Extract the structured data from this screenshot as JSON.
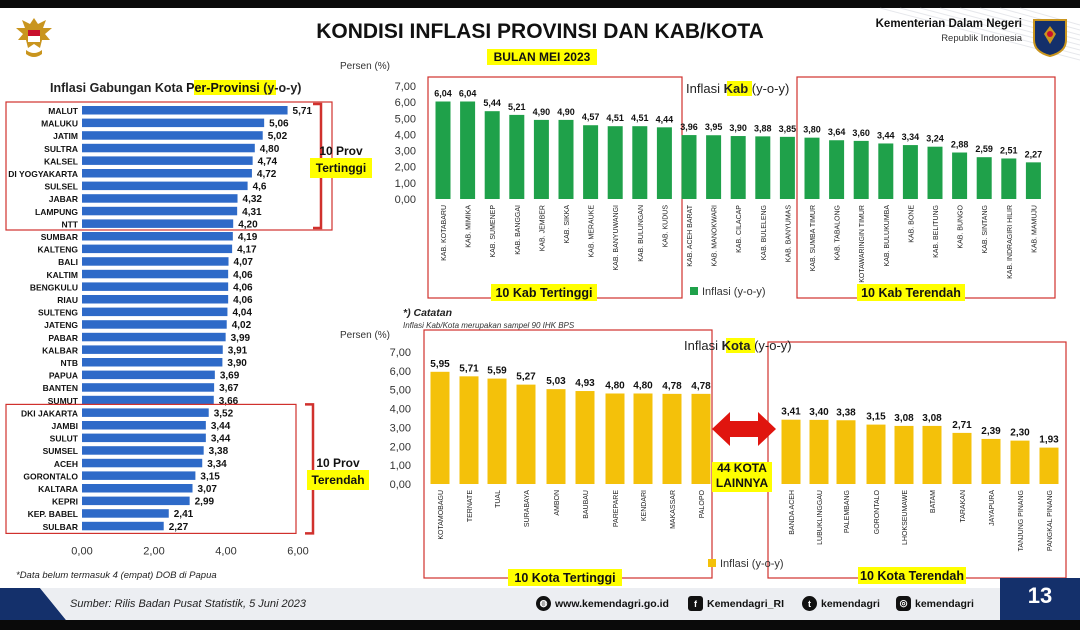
{
  "header": {
    "title": "KONDISI INFLASI PROVINSI DAN KAB/KOTA",
    "subtitle": "BULAN MEI 2023",
    "ministry": "Kementerian Dalam Negeri",
    "ministry_sub": "Republik Indonesia"
  },
  "footer": {
    "source": "Sumber: Rilis Badan Pusat Statistik,  5 Juni 2023",
    "website": "www.kemendagri.go.id",
    "facebook": "Kemendagri_RI",
    "twitter": "kemendagri",
    "instagram": "kemendagri",
    "page_number": "13"
  },
  "colors": {
    "navy": "#14306b",
    "blue_bar": "#2e6ac8",
    "green_bar": "#1fa14a",
    "yellow_bar": "#f4c10a",
    "highlight": "#ffff00",
    "frame_red": "#d0312d",
    "arrow_red": "#e0150f"
  },
  "chart_data": [
    {
      "type": "bar",
      "orientation": "horizontal",
      "title": "Inflasi Gabungan Kota Per-Provinsi (y-o-y)",
      "title_parts": [
        "Inflasi Gabungan Kota ",
        "Per-Provinsi",
        " (y-o-y)"
      ],
      "categories": [
        "MALUT",
        "MALUKU",
        "JATIM",
        "SULTRA",
        "KALSEL",
        "DI YOGYAKARTA",
        "SULSEL",
        "JABAR",
        "LAMPUNG",
        "NTT",
        "SUMBAR",
        "KALTENG",
        "BALI",
        "KALTIM",
        "BENGKULU",
        "RIAU",
        "SULTENG",
        "JATENG",
        "PABAR",
        "KALBAR",
        "NTB",
        "PAPUA",
        "BANTEN",
        "SUMUT",
        "DKI JAKARTA",
        "JAMBI",
        "SULUT",
        "SUMSEL",
        "ACEH",
        "GORONTALO",
        "KALTARA",
        "KEPRI",
        "KEP. BABEL",
        "SULBAR"
      ],
      "values": [
        5.71,
        5.06,
        5.02,
        4.8,
        4.74,
        4.72,
        4.6,
        4.32,
        4.31,
        4.2,
        4.19,
        4.17,
        4.07,
        4.06,
        4.06,
        4.06,
        4.04,
        4.02,
        3.99,
        3.91,
        3.9,
        3.69,
        3.67,
        3.66,
        3.52,
        3.44,
        3.44,
        3.38,
        3.34,
        3.15,
        3.07,
        2.99,
        2.41,
        2.27
      ],
      "value_labels": [
        "5,71",
        "5,06",
        "5,02",
        "4,80",
        "4,74",
        "4,72",
        "4,6",
        "4,32",
        "4,31",
        "4,20",
        "4,19",
        "4,17",
        "4,07",
        "4,06",
        "4,06",
        "4,06",
        "4,04",
        "4,02",
        "3,99",
        "3,91",
        "3,90",
        "3,69",
        "3,67",
        "3,66",
        "3,52",
        "3,44",
        "3,44",
        "3,38",
        "3,34",
        "3,15",
        "3,07",
        "2,99",
        "2,41",
        "2,27"
      ],
      "xticks": [
        "0,00",
        "2,00",
        "4,00",
        "6,00"
      ],
      "xlim": [
        0,
        6
      ],
      "groups": [
        {
          "label_line1": "10 Prov",
          "label_line2": "Tertinggi"
        },
        {
          "label_line1": "10 Prov",
          "label_line2": "Terendah"
        }
      ],
      "note": "*Data belum termasuk 4 (empat) DOB di Papua"
    },
    {
      "type": "bar",
      "title": "Inflasi Kab (y-o-y)",
      "title_parts": [
        "Inflasi ",
        "Kab",
        " (y-o-y)"
      ],
      "ylabel": "Persen (%)",
      "ylim": [
        0,
        7
      ],
      "yticks": [
        "0,00",
        "1,00",
        "2,00",
        "3,00",
        "4,00",
        "5,00",
        "6,00",
        "7,00"
      ],
      "categories": [
        "KAB. KOTABARU",
        "KAB. MIMIKA",
        "KAB. SUMENEP",
        "KAB. BANGGAI",
        "KAB. JEMBER",
        "KAB. SIKKA",
        "KAB. MERAUKE",
        "KAB. BANYUWANGI",
        "KAB. BULUNGAN",
        "KAB. KUDUS",
        "KAB. ACEH BARAT",
        "KAB. MANOKWARI",
        "KAB. CILACAP",
        "KAB. BULELENG",
        "KAB. BANYUMAS",
        "KAB. SUMBA TIMUR",
        "KAB. TABALONG",
        "KAB. KOTAWARINGIN TIMUR",
        "KAB. BULUKUMBA",
        "KAB. BONE",
        "KAB. BELITUNG",
        "KAB. BUNGO",
        "KAB. SINTANG",
        "KAB. INDRAGIRI HILIR",
        "KAB. MAMUJU"
      ],
      "values": [
        6.04,
        6.04,
        5.44,
        5.21,
        4.9,
        4.9,
        4.57,
        4.51,
        4.51,
        4.44,
        3.96,
        3.95,
        3.9,
        3.88,
        3.85,
        3.8,
        3.64,
        3.6,
        3.44,
        3.34,
        3.24,
        2.88,
        2.59,
        2.51,
        2.27
      ],
      "value_labels": [
        "6,04",
        "6,04",
        "5,44",
        "5,21",
        "4,90",
        "4,90",
        "4,57",
        "4,51",
        "4,51",
        "4,44",
        "3,96",
        "3,95",
        "3,90",
        "3,88",
        "3,85",
        "3,80",
        "3,64",
        "3,60",
        "3,44",
        "3,34",
        "3,24",
        "2,88",
        "2,59",
        "2,51",
        "2,27"
      ],
      "legend": "Inflasi (y-o-y)",
      "group_high": "10 Kab Tertinggi",
      "group_low": "10 Kab Terendah"
    },
    {
      "type": "bar",
      "title": "Inflasi Kota (y-o-y)",
      "title_parts": [
        "Inflasi ",
        "Kota",
        " (y-o-y)"
      ],
      "ylabel": "Persen (%)",
      "ylim": [
        0,
        7
      ],
      "yticks": [
        "0,00",
        "1,00",
        "2,00",
        "3,00",
        "4,00",
        "5,00",
        "6,00",
        "7,00"
      ],
      "categories": [
        "KOTAMOBAGU",
        "TERNATE",
        "TUAL",
        "SURABAYA",
        "AMBON",
        "BAUBAU",
        "PAREPARE",
        "KENDARI",
        "MAKASSAR",
        "PALOPO",
        "BANDA ACEH",
        "LUBUKLINGGAU",
        "PALEMBANG",
        "GORONTALO",
        "LHOKSEUMAWE",
        "BATAM",
        "TARAKAN",
        "JAYAPURA",
        "TANJUNG PINANG",
        "PANGKAL PINANG"
      ],
      "values": [
        5.95,
        5.71,
        5.59,
        5.27,
        5.03,
        4.93,
        4.8,
        4.8,
        4.78,
        4.78,
        3.41,
        3.4,
        3.38,
        3.15,
        3.08,
        3.08,
        2.71,
        2.39,
        2.3,
        1.93
      ],
      "value_labels": [
        "5,95",
        "5,71",
        "5,59",
        "5,27",
        "5,03",
        "4,93",
        "4,80",
        "4,80",
        "4,78",
        "4,78",
        "3,41",
        "3,40",
        "3,38",
        "3,15",
        "3,08",
        "3,08",
        "2,71",
        "2,39",
        "2,30",
        "1,93"
      ],
      "legend": "Inflasi (y-o-y)",
      "group_high": "10 Kota Tertinggi",
      "group_low": "10 Kota Terendah",
      "gap_label_line1": "44 KOTA",
      "gap_label_line2": "LAINNYA",
      "note_title": "*) Catatan",
      "note_text": "Inflasi Kab/Kota merupakan sampel 90 IHK BPS"
    }
  ]
}
